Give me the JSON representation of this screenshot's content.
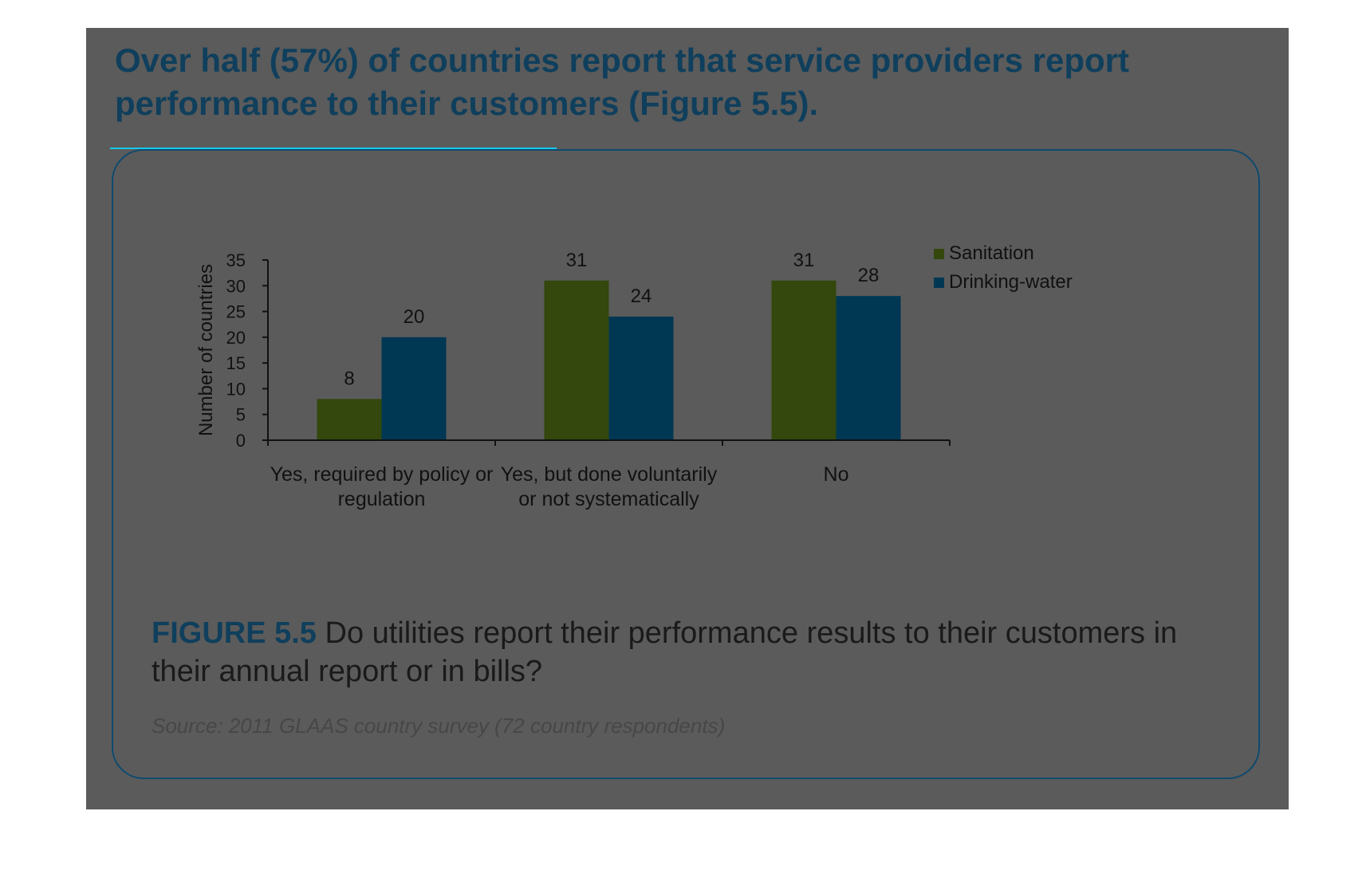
{
  "heading": "Over half (57%) of countries report that service providers report performance to their customers (Figure 5.5).",
  "colors": {
    "page_bg": "#5b5b5b",
    "sanitation": "#34470c",
    "drinking_water": "#003753",
    "accent": "#0f3f5c"
  },
  "figure": {
    "label": "FIGURE 5.5",
    "text": " Do utilities report their performance results to their customers in their annual report or in bills?",
    "source": "Source: 2011 GLAAS country survey (72 country respondents)"
  },
  "chart_data": {
    "type": "bar",
    "categories": [
      [
        "Yes, required by policy or",
        "regulation"
      ],
      [
        "Yes, but done voluntarily",
        "or not systematically"
      ],
      [
        "No"
      ]
    ],
    "series": [
      {
        "name": "Sanitation",
        "values": [
          8,
          31,
          31
        ]
      },
      {
        "name": "Drinking-water",
        "values": [
          20,
          24,
          28
        ]
      }
    ],
    "ylabel": "Number of countries",
    "ylim": [
      0,
      35
    ],
    "yticks": [
      0,
      5,
      10,
      15,
      20,
      25,
      30,
      35
    ],
    "data_labels": true,
    "legend": "top-right",
    "grid": false
  }
}
